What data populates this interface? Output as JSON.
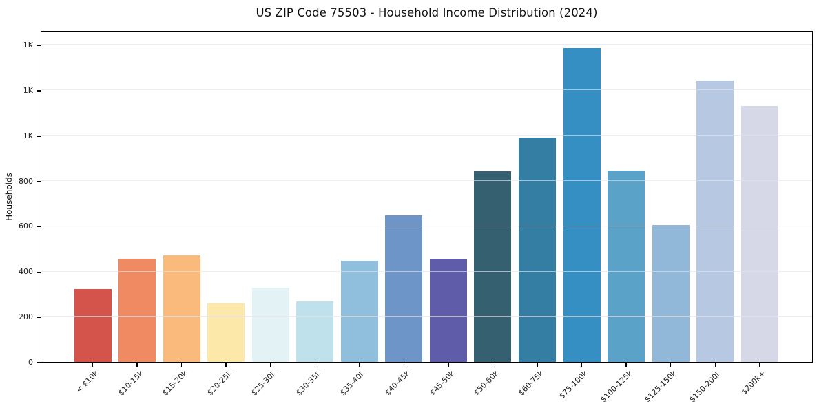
{
  "figure_title": "US ZIP Code 75503 - Household Income Distribution (2024)",
  "colors": {
    "background": "#ffffff",
    "spine": "#000000",
    "gridline": "#ebebee",
    "tick": "#000000",
    "text": "#1a1a1a"
  },
  "chart_data": {
    "type": "bar",
    "title": "US ZIP Code 75503 - Household Income Distribution (2024)",
    "xlabel": "",
    "ylabel": "Households",
    "categories": [
      "< $10k",
      "$10-15k",
      "$15-20k",
      "$20-25k",
      "$25-30k",
      "$30-35k",
      "$35-40k",
      "$40-45k",
      "$45-50k",
      "$50-60k",
      "$60-75k",
      "$75-100k",
      "$100-125k",
      "$125-150k",
      "$150-200k",
      "$200k+"
    ],
    "values": [
      322,
      455,
      470,
      257,
      328,
      268,
      446,
      648,
      456,
      840,
      990,
      1386,
      845,
      606,
      1243,
      1130
    ],
    "bar_colors": [
      "#d4544b",
      "#f08a63",
      "#f9ba7b",
      "#fce9a9",
      "#e2f2f5",
      "#bfe1ec",
      "#90bedd",
      "#6d95c8",
      "#5f5caa",
      "#35606f",
      "#357ea3",
      "#368fc2",
      "#5aa2c8",
      "#91b8d8",
      "#b7c8e2",
      "#d6d8e7"
    ],
    "ylim": [
      0,
      1455
    ],
    "yticks": [
      {
        "value": 0,
        "label": "0"
      },
      {
        "value": 200,
        "label": "200"
      },
      {
        "value": 400,
        "label": "400"
      },
      {
        "value": 600,
        "label": "600"
      },
      {
        "value": 800,
        "label": "800"
      },
      {
        "value": 1000,
        "label": "1K"
      },
      {
        "value": 1200,
        "label": "1K"
      },
      {
        "value": 1400,
        "label": "1K"
      }
    ],
    "grid": "horizontal-light-gridlines-over-bars",
    "legend": "none",
    "x_tick_rotation_deg": 45
  }
}
